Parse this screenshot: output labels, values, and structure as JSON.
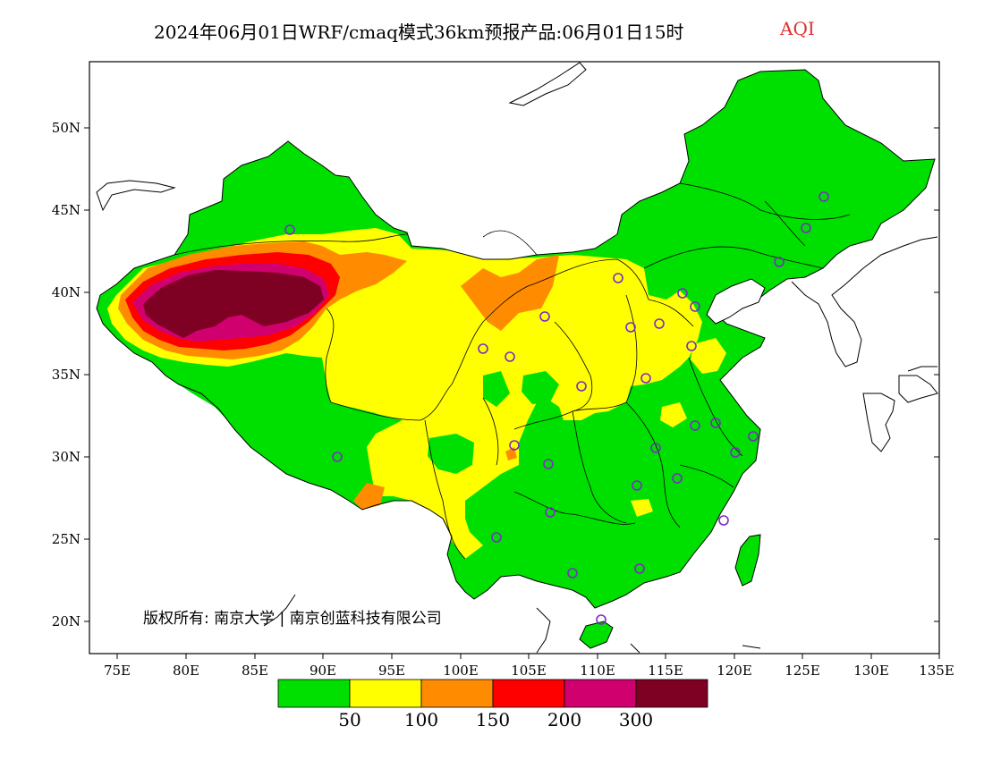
{
  "title": {
    "main": "2024年06月01日WRF/cmaq模式36km预报产品:06月01日15时",
    "variable": "AQI"
  },
  "map": {
    "lat_ticks": [
      "50N",
      "45N",
      "40N",
      "35N",
      "30N",
      "25N",
      "20N"
    ],
    "lon_ticks": [
      "75E",
      "80E",
      "85E",
      "90E",
      "95E",
      "100E",
      "105E",
      "110E",
      "115E",
      "120E",
      "125E",
      "130E",
      "135E"
    ],
    "copyright": "版权所有: 南京大学 | 南京创蓝科技有限公司"
  },
  "legend": {
    "colors": [
      "#00e000",
      "#ffff00",
      "#ff8c00",
      "#ff0000",
      "#d0006e",
      "#7e0023"
    ],
    "labels": [
      "50",
      "100",
      "150",
      "200",
      "300"
    ]
  },
  "chart_data": {
    "type": "heatmap",
    "title": "2024年06月01日WRF/cmaq模式36km预报产品:06月01日15时",
    "variable": "AQI",
    "x_range_deg_E": [
      73,
      135
    ],
    "y_range_deg_N": [
      18,
      54
    ],
    "color_breaks": [
      50,
      100,
      150,
      200,
      300
    ],
    "color_classes": [
      "0-50",
      "50-100",
      "100-150",
      "150-200",
      "200-300",
      ">300"
    ],
    "hotspot": "Taklimakan basin >300 AQI (approx. 77-87E, 37-41N)"
  }
}
